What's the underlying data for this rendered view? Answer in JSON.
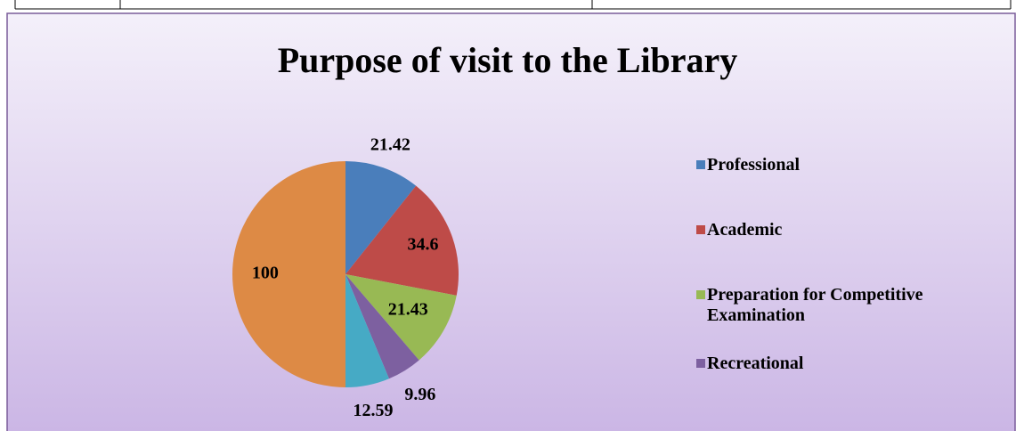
{
  "chart_data": {
    "type": "pie",
    "title": "Purpose of visit to the Library",
    "categories": [
      "Professional",
      "Academic",
      "Preparation for Competitive Examination",
      "Recreational",
      null,
      null
    ],
    "values": [
      21.42,
      34.6,
      21.43,
      9.96,
      12.59,
      100
    ],
    "colors": [
      "#4a7ebb",
      "#be4b48",
      "#98b954",
      "#7d60a0",
      "#46aac5",
      "#dd8a45"
    ],
    "legend": "right"
  }
}
